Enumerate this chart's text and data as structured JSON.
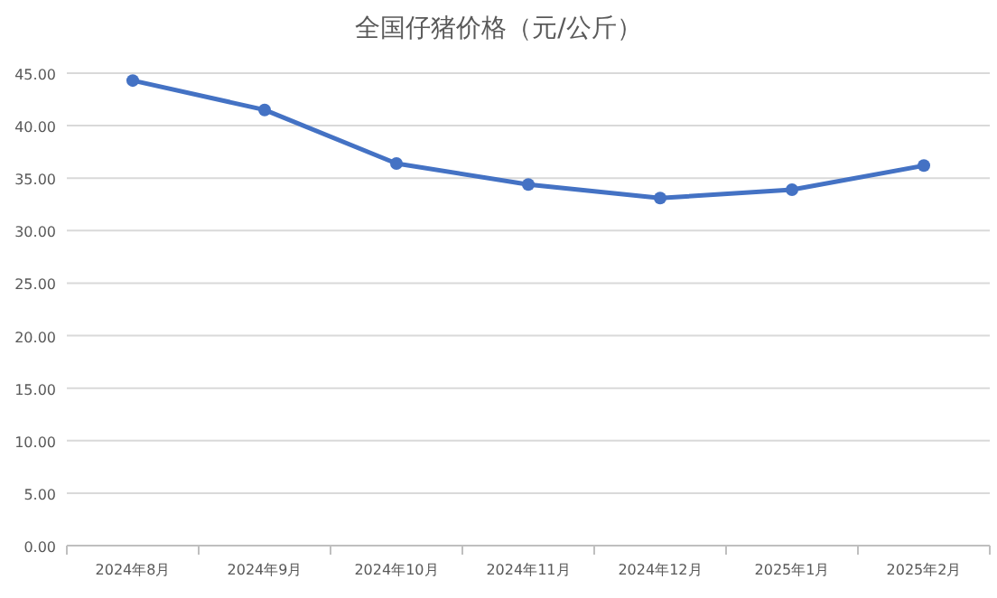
{
  "chart_data": {
    "type": "line",
    "title": "全国仔猪价格（元/公斤）",
    "categories": [
      "2024年8月",
      "2024年9月",
      "2024年10月",
      "2024年11月",
      "2024年12月",
      "2025年1月",
      "2025年2月"
    ],
    "series": [
      {
        "color": "#4472c4",
        "values": [
          44.3,
          41.5,
          36.4,
          34.4,
          33.1,
          33.9,
          36.2
        ]
      }
    ],
    "ylim": [
      0,
      45
    ],
    "yticks": [
      {
        "value": 0,
        "label": "0.00"
      },
      {
        "value": 5,
        "label": "5.00"
      },
      {
        "value": 10,
        "label": "10.00"
      },
      {
        "value": 15,
        "label": "15.00"
      },
      {
        "value": 20,
        "label": "20.00"
      },
      {
        "value": 25,
        "label": "25.00"
      },
      {
        "value": 30,
        "label": "30.00"
      },
      {
        "value": 35,
        "label": "35.00"
      },
      {
        "value": 40,
        "label": "40.00"
      },
      {
        "value": 45,
        "label": "45.00"
      }
    ],
    "grid": "y",
    "marker": "circle",
    "line_style": "solid"
  }
}
